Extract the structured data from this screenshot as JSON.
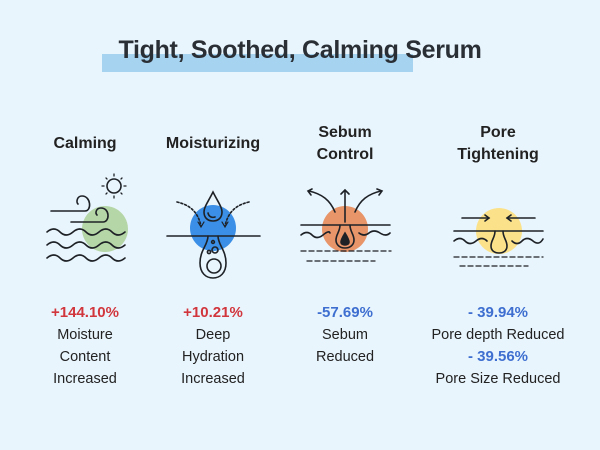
{
  "title": "Tight, Soothed, Calming Serum",
  "colors": {
    "background": "#e9f5fd",
    "highlight": "#a6d3ef",
    "increase": "#d2363d",
    "decrease": "#3e6fd0",
    "calming": "#b5d6a7",
    "moisturizing": "#3b8fe6",
    "sebum": "#e8956a",
    "pore": "#fbe28a"
  },
  "columns": [
    {
      "heading": [
        "Calming"
      ],
      "icon": "wind-waves-sun-icon",
      "stats": [
        {
          "value": "+144.10%",
          "label": [
            "Moisture",
            "Content",
            "Increased"
          ]
        }
      ]
    },
    {
      "heading": [
        "Moisturizing"
      ],
      "icon": "water-drop-absorption-icon",
      "stats": [
        {
          "value": "+10.21%",
          "label": [
            "Deep",
            "Hydration",
            "Increased"
          ]
        }
      ]
    },
    {
      "heading": [
        "Sebum",
        "Control"
      ],
      "icon": "sebum-pore-release-icon",
      "stats": [
        {
          "value": "-57.69%",
          "label": [
            "Sebum",
            "Reduced"
          ]
        }
      ]
    },
    {
      "heading": [
        "Pore",
        "Tightening"
      ],
      "icon": "pore-tightening-icon",
      "stats": [
        {
          "value": "- 39.94%",
          "label": [
            "Pore depth Reduced"
          ]
        },
        {
          "value": "- 39.56%",
          "label": [
            "Pore Size Reduced"
          ]
        }
      ]
    }
  ]
}
